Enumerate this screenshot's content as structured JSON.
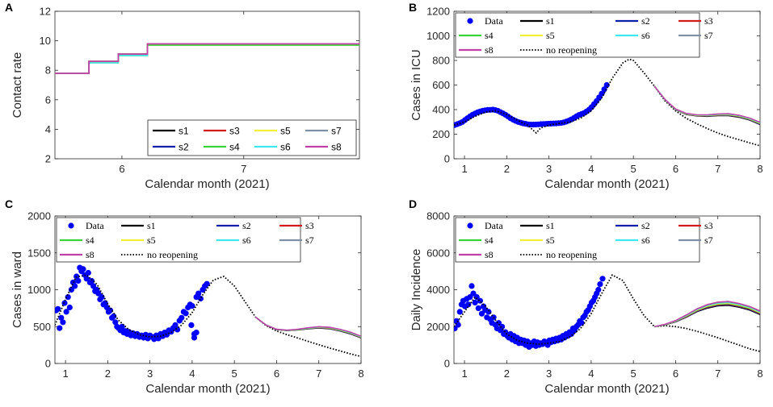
{
  "colors": {
    "data": "#0000ff",
    "s1": "#000000",
    "s2": "#0a1fa8",
    "s3": "#d21a1a",
    "s4": "#39d439",
    "s5": "#f0f03a",
    "s6": "#3ee8ee",
    "s7": "#7f8fa6",
    "s8": "#c040a8",
    "noreopen": "#000000"
  },
  "chart_data": [
    {
      "panel": "A",
      "type": "line",
      "xlabel": "Calendar month (2021)",
      "ylabel": "Contact rate",
      "xlim": [
        5.45,
        7.95
      ],
      "ylim": [
        2,
        12
      ],
      "xticks": [
        6,
        7
      ],
      "yticks": [
        2,
        4,
        6,
        8,
        10,
        12
      ],
      "legend": {
        "location": "bottom-right",
        "layout": "4x2",
        "entries": [
          "s1",
          "s2",
          "s3",
          "s4",
          "s5",
          "s6",
          "s7",
          "s8"
        ]
      },
      "series": [
        {
          "name": "s1",
          "x": [
            5.45,
            5.73,
            5.73,
            5.97,
            5.97,
            6.21,
            6.21,
            7.95
          ],
          "y": [
            7.8,
            7.8,
            8.6,
            8.6,
            9.1,
            9.1,
            9.8,
            9.8
          ]
        },
        {
          "name": "s2",
          "x": [
            5.45,
            5.73,
            5.73,
            5.97,
            5.97,
            6.21,
            6.21,
            7.95
          ],
          "y": [
            7.8,
            7.8,
            8.6,
            8.6,
            9.1,
            9.1,
            9.8,
            9.8
          ]
        },
        {
          "name": "s3",
          "x": [
            5.45,
            5.73,
            5.73,
            5.97,
            5.97,
            6.21,
            6.21,
            7.95
          ],
          "y": [
            7.8,
            7.8,
            8.6,
            8.6,
            9.1,
            9.1,
            9.8,
            9.8
          ]
        },
        {
          "name": "s4",
          "x": [
            5.45,
            5.73,
            5.73,
            5.97,
            5.97,
            6.21,
            6.21,
            7.95
          ],
          "y": [
            7.8,
            7.8,
            8.5,
            8.5,
            9.0,
            9.0,
            9.7,
            9.7
          ]
        },
        {
          "name": "s5",
          "x": [
            5.45,
            5.73,
            5.73,
            5.97,
            5.97,
            6.21,
            6.21,
            7.95
          ],
          "y": [
            7.8,
            7.8,
            8.6,
            8.6,
            9.1,
            9.1,
            9.8,
            9.8
          ]
        },
        {
          "name": "s6",
          "x": [
            5.45,
            5.73,
            5.73,
            5.97,
            5.97,
            6.21,
            6.21,
            7.95
          ],
          "y": [
            7.8,
            7.8,
            8.5,
            8.5,
            9.0,
            9.0,
            9.8,
            9.8
          ]
        },
        {
          "name": "s7",
          "x": [
            5.45,
            5.73,
            5.73,
            5.97,
            5.97,
            6.21,
            6.21,
            7.95
          ],
          "y": [
            7.8,
            7.8,
            8.6,
            8.6,
            9.1,
            9.1,
            9.8,
            9.8
          ]
        },
        {
          "name": "s8",
          "x": [
            5.45,
            5.73,
            5.73,
            5.97,
            5.97,
            6.21,
            6.21,
            7.95
          ],
          "y": [
            7.8,
            7.8,
            8.6,
            8.6,
            9.1,
            9.1,
            9.8,
            9.8
          ]
        }
      ]
    },
    {
      "panel": "B",
      "type": "line",
      "xlabel": "Calendar month (2021)",
      "ylabel": "Cases in ICU",
      "xlim": [
        0.75,
        8
      ],
      "ylim": [
        0,
        1200
      ],
      "xticks": [
        1,
        2,
        3,
        4,
        5,
        6,
        7,
        8
      ],
      "yticks": [
        0,
        200,
        400,
        600,
        800,
        1000,
        1200
      ],
      "legend": {
        "location": "top-left",
        "layout": "3x4",
        "entries": [
          "Data",
          "s1",
          "s2",
          "s3",
          "s4",
          "s5",
          "s6",
          "s7",
          "s8",
          "no reopening"
        ]
      },
      "data_points": {
        "x": [
          0.77,
          0.83,
          0.89,
          0.95,
          1.01,
          1.07,
          1.13,
          1.19,
          1.25,
          1.31,
          1.37,
          1.43,
          1.49,
          1.55,
          1.61,
          1.67,
          1.73,
          1.79,
          1.85,
          1.91,
          1.97,
          2.03,
          2.09,
          2.15,
          2.21,
          2.27,
          2.33,
          2.39,
          2.45,
          2.51,
          2.57,
          2.63,
          2.69,
          2.75,
          2.81,
          2.87,
          2.93,
          2.99,
          3.05,
          3.11,
          3.17,
          3.23,
          3.29,
          3.35,
          3.41,
          3.47,
          3.53,
          3.59,
          3.65,
          3.71,
          3.77,
          3.83,
          3.89,
          3.95,
          4.01,
          4.07,
          4.13,
          4.19,
          4.25,
          4.31,
          4.37
        ],
        "y": [
          275,
          282,
          290,
          300,
          315,
          330,
          345,
          358,
          368,
          378,
          385,
          390,
          395,
          398,
          398,
          400,
          396,
          390,
          380,
          370,
          358,
          344,
          330,
          318,
          308,
          300,
          294,
          288,
          284,
          280,
          278,
          278,
          279,
          280,
          282,
          283,
          284,
          285,
          286,
          287,
          288,
          290,
          292,
          296,
          302,
          310,
          320,
          332,
          345,
          356,
          364,
          372,
          385,
          400,
          420,
          445,
          470,
          500,
          530,
          565,
          600
        ]
      },
      "fit": {
        "x": [
          0.75,
          1.0,
          1.25,
          1.5,
          1.75,
          2.0,
          2.25,
          2.5,
          2.6,
          2.7,
          2.8,
          3.0,
          3.25,
          3.5,
          3.75,
          4.0,
          4.25,
          4.5,
          4.75,
          4.9,
          5.0,
          5.25,
          5.5
        ],
        "y": [
          275,
          300,
          345,
          380,
          390,
          360,
          315,
          272,
          240,
          210,
          250,
          275,
          288,
          300,
          330,
          390,
          495,
          655,
          780,
          810,
          800,
          700,
          590
        ]
      },
      "scenarios": {
        "x": [
          5.5,
          5.75,
          6.0,
          6.25,
          6.5,
          6.75,
          7.0,
          7.25,
          7.5,
          7.75,
          8.0
        ],
        "s1": [
          590,
          480,
          400,
          360,
          348,
          345,
          350,
          350,
          338,
          315,
          278
        ],
        "s8": [
          590,
          482,
          405,
          370,
          358,
          358,
          365,
          368,
          355,
          332,
          298
        ],
        "no_reopening": [
          590,
          470,
          390,
          330,
          285,
          245,
          210,
          180,
          155,
          130,
          105
        ]
      }
    },
    {
      "panel": "C",
      "type": "line",
      "xlabel": "Calendar month (2021)",
      "ylabel": "Cases in ward",
      "xlim": [
        0.75,
        8
      ],
      "ylim": [
        0,
        2000
      ],
      "xticks": [
        1,
        2,
        3,
        4,
        5,
        6,
        7,
        8
      ],
      "yticks": [
        0,
        500,
        1000,
        1500,
        2000
      ],
      "legend": {
        "location": "top-left",
        "layout": "3x4",
        "entries": [
          "Data",
          "s1",
          "s2",
          "s3",
          "s4",
          "s5",
          "s6",
          "s7",
          "s8",
          "no reopening"
        ]
      },
      "data_points": {
        "x": [
          0.78,
          0.82,
          0.86,
          0.9,
          0.94,
          0.98,
          1.02,
          1.06,
          1.1,
          1.14,
          1.18,
          1.22,
          1.26,
          1.3,
          1.34,
          1.38,
          1.42,
          1.46,
          1.5,
          1.54,
          1.58,
          1.62,
          1.66,
          1.7,
          1.74,
          1.78,
          1.82,
          1.86,
          1.9,
          1.94,
          1.98,
          2.02,
          2.06,
          2.1,
          2.14,
          2.18,
          2.22,
          2.26,
          2.3,
          2.34,
          2.38,
          2.42,
          2.46,
          2.5,
          2.55,
          2.6,
          2.65,
          2.7,
          2.75,
          2.8,
          2.85,
          2.9,
          2.95,
          3.0,
          3.05,
          3.1,
          3.15,
          3.2,
          3.25,
          3.3,
          3.35,
          3.4,
          3.45,
          3.5,
          3.55,
          3.6,
          3.65,
          3.7,
          3.75,
          3.8,
          3.85,
          3.9,
          3.95,
          4.0,
          4.05,
          4.1,
          4.15,
          4.2,
          4.25,
          4.3,
          4.35
        ],
        "y": [
          720,
          740,
          480,
          620,
          560,
          820,
          700,
          900,
          760,
          1000,
          1100,
          1050,
          1180,
          1120,
          1300,
          1250,
          1280,
          1200,
          1150,
          1230,
          1100,
          1120,
          1050,
          980,
          1000,
          950,
          870,
          900,
          800,
          820,
          760,
          700,
          720,
          620,
          640,
          560,
          500,
          480,
          450,
          500,
          420,
          440,
          400,
          430,
          380,
          410,
          370,
          400,
          360,
          380,
          350,
          390,
          340,
          380,
          360,
          330,
          380,
          340,
          400,
          370,
          420,
          390,
          450,
          430,
          480,
          520,
          460,
          580,
          620,
          700,
          680,
          760,
          800,
          780,
          400,
          900,
          950,
          880,
          1000,
          1050,
          1080
        ],
        "x_extra": [
          4.05,
          4.1,
          3.98
        ],
        "y_extra": [
          350,
          420,
          520
        ]
      },
      "fit": {
        "x": [
          0.75,
          1.0,
          1.25,
          1.5,
          1.75,
          2.0,
          2.25,
          2.5,
          2.75,
          3.0,
          3.25,
          3.5,
          3.75,
          4.0,
          4.25,
          4.5,
          4.75,
          5.0,
          5.25,
          5.5
        ],
        "y": [
          520,
          870,
          1170,
          1200,
          1070,
          810,
          590,
          460,
          390,
          360,
          370,
          420,
          520,
          690,
          930,
          1130,
          1180,
          1050,
          840,
          630
        ]
      },
      "scenarios": {
        "x": [
          5.5,
          5.75,
          6.0,
          6.25,
          6.5,
          6.75,
          7.0,
          7.25,
          7.5,
          7.75,
          8.0
        ],
        "s1": [
          630,
          520,
          460,
          445,
          455,
          470,
          480,
          470,
          440,
          400,
          345
        ],
        "s8": [
          630,
          522,
          465,
          452,
          465,
          485,
          500,
          492,
          465,
          425,
          370
        ],
        "no_reopening": [
          630,
          515,
          440,
          390,
          345,
          300,
          255,
          210,
          170,
          130,
          95
        ]
      }
    },
    {
      "panel": "D",
      "type": "line",
      "xlabel": "Calendar month (2021)",
      "ylabel": "Daily Incidence",
      "xlim": [
        0.75,
        8
      ],
      "ylim": [
        0,
        8000
      ],
      "xticks": [
        1,
        2,
        3,
        4,
        5,
        6,
        7,
        8
      ],
      "yticks": [
        0,
        2000,
        4000,
        6000,
        8000
      ],
      "legend": {
        "location": "top-left",
        "layout": "3x4",
        "entries": [
          "Data",
          "s1",
          "s2",
          "s3",
          "s4",
          "s5",
          "s6",
          "s7",
          "s8",
          "no reopening"
        ]
      },
      "data_points": {
        "x": [
          0.77,
          0.81,
          0.85,
          0.89,
          0.93,
          0.97,
          1.01,
          1.05,
          1.09,
          1.13,
          1.17,
          1.21,
          1.25,
          1.29,
          1.33,
          1.37,
          1.41,
          1.45,
          1.49,
          1.53,
          1.57,
          1.61,
          1.65,
          1.69,
          1.73,
          1.77,
          1.81,
          1.85,
          1.89,
          1.93,
          1.97,
          2.01,
          2.05,
          2.09,
          2.13,
          2.17,
          2.21,
          2.25,
          2.29,
          2.33,
          2.37,
          2.41,
          2.45,
          2.49,
          2.53,
          2.57,
          2.61,
          2.65,
          2.69,
          2.73,
          2.77,
          2.81,
          2.85,
          2.89,
          2.93,
          2.97,
          3.01,
          3.05,
          3.09,
          3.13,
          3.17,
          3.21,
          3.25,
          3.29,
          3.33,
          3.37,
          3.41,
          3.45,
          3.49,
          3.53,
          3.57,
          3.61,
          3.65,
          3.69,
          3.73,
          3.77,
          3.81,
          3.85,
          3.89,
          3.93,
          3.97,
          4.01,
          4.05,
          4.09,
          4.13,
          4.17,
          4.21,
          4.27
        ],
        "y": [
          1900,
          2300,
          2100,
          2800,
          3200,
          3400,
          3100,
          3500,
          3200,
          3600,
          4200,
          3800,
          3300,
          3600,
          3000,
          3400,
          2700,
          3100,
          2900,
          2500,
          2800,
          2400,
          2200,
          2500,
          2100,
          1900,
          2200,
          1800,
          2000,
          1600,
          1700,
          1500,
          1400,
          1600,
          1300,
          1500,
          1200,
          1400,
          1100,
          1300,
          1100,
          1250,
          1000,
          1200,
          900,
          1100,
          1000,
          1200,
          950,
          1150,
          1000,
          1100,
          1050,
          1200,
          1100,
          1000,
          1250,
          1150,
          1300,
          1200,
          1350,
          1250,
          1400,
          1300,
          1500,
          1400,
          1600,
          1500,
          1700,
          1600,
          1900,
          1800,
          2000,
          2100,
          2300,
          2200,
          2500,
          2600,
          2800,
          2900,
          3100,
          3300,
          3400,
          3600,
          3800,
          4000,
          4300,
          4600
        ]
      },
      "fit": {
        "x": [
          0.75,
          1.0,
          1.25,
          1.5,
          1.75,
          2.0,
          2.25,
          2.5,
          2.75,
          3.0,
          3.25,
          3.5,
          3.75,
          4.0,
          4.25,
          4.5,
          4.75,
          5.0,
          5.25,
          5.5
        ],
        "y": [
          2000,
          2800,
          3600,
          3100,
          2300,
          1600,
          1250,
          1100,
          1050,
          1100,
          1200,
          1450,
          1900,
          2700,
          3800,
          4800,
          4500,
          3500,
          2600,
          2000
        ]
      },
      "scenarios": {
        "x": [
          5.5,
          5.75,
          6.0,
          6.25,
          6.5,
          6.75,
          7.0,
          7.25,
          7.5,
          7.75,
          8.0
        ],
        "s1": [
          2000,
          2100,
          2250,
          2500,
          2800,
          3000,
          3120,
          3150,
          3050,
          2900,
          2650
        ],
        "s8": [
          2000,
          2130,
          2330,
          2630,
          2960,
          3200,
          3330,
          3370,
          3260,
          3100,
          2850
        ],
        "no_reopening": [
          2000,
          2050,
          2000,
          1900,
          1750,
          1580,
          1400,
          1200,
          1000,
          800,
          650
        ]
      }
    }
  ]
}
